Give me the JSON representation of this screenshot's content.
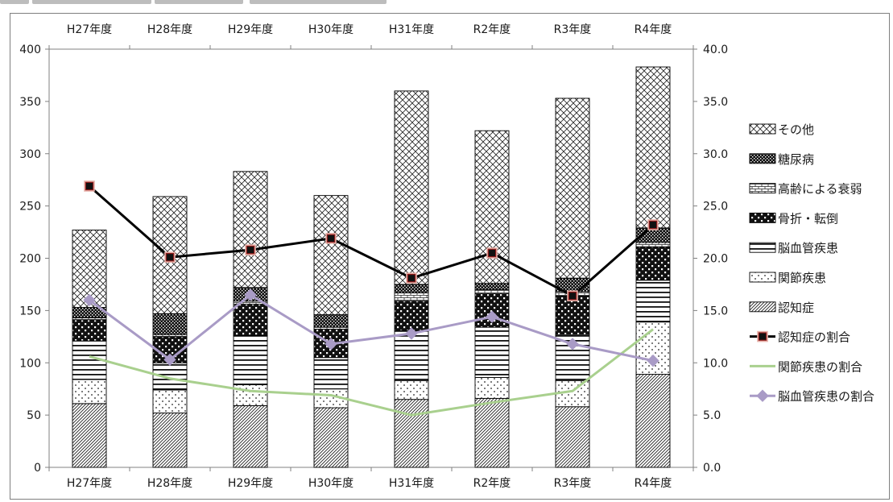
{
  "chart_data": {
    "type": "bar",
    "stacked": true,
    "categories": [
      "H27年度",
      "H28年度",
      "H29年度",
      "H30年度",
      "H31年度",
      "R2年度",
      "R3年度",
      "R4年度"
    ],
    "ylim": [
      0,
      400
    ],
    "yticks": [
      "0",
      "50",
      "100",
      "150",
      "200",
      "250",
      "300",
      "350",
      "400"
    ],
    "y2lim": [
      0,
      40
    ],
    "y2ticks": [
      "0.0",
      "5.0",
      "10.0",
      "15.0",
      "20.0",
      "25.0",
      "30.0",
      "35.0",
      "40.0"
    ],
    "grid": false,
    "legend_position": "right",
    "series": [
      {
        "name": "認知症",
        "kind": "bar",
        "pattern": "diagonal",
        "values": [
          61,
          52,
          59,
          57,
          65,
          66,
          58,
          89
        ]
      },
      {
        "name": "関節疾患",
        "kind": "bar",
        "pattern": "dots",
        "values": [
          23,
          22,
          20,
          18,
          18,
          20,
          25,
          50
        ]
      },
      {
        "name": "脳血管疾患",
        "kind": "bar",
        "pattern": "hlines",
        "values": [
          37,
          26,
          47,
          30,
          48,
          48,
          44,
          40
        ]
      },
      {
        "name": "骨折・転倒",
        "kind": "bar",
        "pattern": "checker",
        "values": [
          20,
          25,
          30,
          27,
          28,
          32,
          37,
          32
        ]
      },
      {
        "name": "高齢による衰弱",
        "kind": "bar",
        "pattern": "bricks",
        "values": [
          2,
          2,
          3,
          2,
          8,
          4,
          4,
          4
        ]
      },
      {
        "name": "糖尿病",
        "kind": "bar",
        "pattern": "darkcheck",
        "values": [
          10,
          20,
          13,
          12,
          8,
          6,
          13,
          14
        ]
      },
      {
        "name": "その他",
        "kind": "bar",
        "pattern": "crosshatch",
        "values": [
          74,
          112,
          111,
          114,
          185,
          146,
          172,
          154
        ]
      },
      {
        "name": "認知症の割合",
        "kind": "line",
        "axis": "right",
        "color": "#000000",
        "marker": "square",
        "values": [
          26.9,
          20.1,
          20.8,
          21.9,
          18.1,
          20.5,
          16.4,
          23.2
        ]
      },
      {
        "name": "関節疾患の割合",
        "kind": "line",
        "axis": "right",
        "color": "#a9d08e",
        "marker": "none",
        "values": [
          10.6,
          8.5,
          7.3,
          6.9,
          5.0,
          6.2,
          7.3,
          13.2
        ]
      },
      {
        "name": "脳血管疾患の割合",
        "kind": "line",
        "axis": "right",
        "color": "#a99bc6",
        "marker": "diamond",
        "values": [
          16.0,
          10.3,
          16.5,
          11.8,
          12.8,
          14.4,
          11.8,
          10.2
        ]
      }
    ],
    "legend_order": [
      "その他",
      "糖尿病",
      "高齢による衰弱",
      "骨折・転倒",
      "脳血管疾患",
      "関節疾患",
      "認知症",
      "認知症の割合",
      "関節疾患の割合",
      "脳血管疾患の割合"
    ]
  }
}
